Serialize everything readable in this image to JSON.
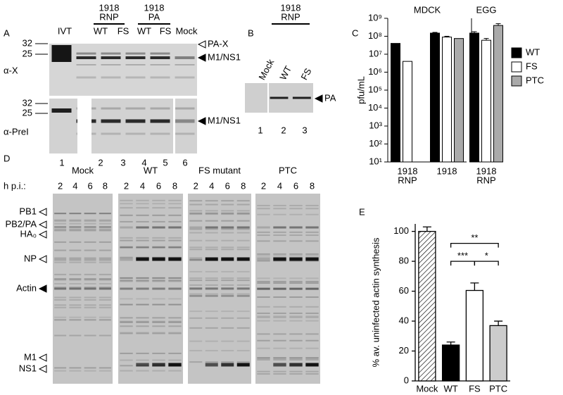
{
  "panel_a": {
    "letter": "A",
    "ivt_label": "IVT",
    "groups": [
      {
        "title_lines": [
          "1918",
          "RNP"
        ],
        "lanes": [
          "WT",
          "FS"
        ]
      },
      {
        "title_lines": [
          "1918",
          "PA"
        ],
        "lanes": [
          "WT",
          "FS"
        ]
      }
    ],
    "mock_label": "Mock",
    "blots": [
      {
        "antibody": "α-X",
        "markers": [
          "32",
          "25"
        ],
        "band_labels": [
          {
            "text": "PA-X",
            "marker": "open"
          },
          {
            "text": "M1/NS1",
            "marker": "filled"
          }
        ]
      },
      {
        "antibody": "α-PreI",
        "markers": [
          "32",
          "25"
        ],
        "band_labels": [
          {
            "text": "M1/NS1",
            "marker": "filled"
          }
        ]
      }
    ],
    "lane_numbers": [
      "1",
      "2",
      "3",
      "4",
      "5",
      "6"
    ]
  },
  "panel_b": {
    "letter": "B",
    "title_lines": [
      "1918",
      "RNP"
    ],
    "lanes": [
      "Mock",
      "WT",
      "FS"
    ],
    "band_label": "PA",
    "lane_numbers": [
      "1",
      "2",
      "3"
    ]
  },
  "panel_d": {
    "letter": "D",
    "time_label": "h p.i.:",
    "groups": [
      {
        "name": "Mock",
        "times": [
          "2",
          "4",
          "6",
          "8"
        ]
      },
      {
        "name": "WT",
        "times": [
          "2",
          "4",
          "6",
          "8"
        ]
      },
      {
        "name": "FS mutant",
        "times": [
          "2",
          "4",
          "6",
          "8"
        ]
      },
      {
        "name": "PTC",
        "times": [
          "2",
          "4",
          "6",
          "8"
        ]
      }
    ],
    "band_labels": [
      {
        "text": "PB1",
        "marker": "open"
      },
      {
        "text": "PB2/PA",
        "marker": "open"
      },
      {
        "text": "HA₀",
        "marker": "open"
      },
      {
        "text": "NP",
        "marker": "open"
      },
      {
        "text": "Actin",
        "marker": "filled"
      },
      {
        "text": "M1",
        "marker": "open"
      },
      {
        "text": "NS1",
        "marker": "open"
      }
    ]
  },
  "chart_data": [
    {
      "type": "bar",
      "panel_label": "C",
      "y_label": "pfu/mL",
      "log_scale": true,
      "facets": [
        {
          "title": "MDCK",
          "categories": [
            [
              "1918",
              "RNP"
            ],
            [
              "1918"
            ]
          ]
        },
        {
          "title": "EGG",
          "categories": [
            [
              "1918",
              "RNP"
            ]
          ]
        }
      ],
      "series": [
        {
          "name": "WT",
          "color": "#000000",
          "values": [
            40000000,
            150000000,
            150000000
          ],
          "errors": [
            null,
            15000000,
            30000000
          ]
        },
        {
          "name": "FS",
          "color": "#ffffff",
          "values": [
            4000000,
            90000000,
            60000000
          ],
          "errors": [
            null,
            10000000,
            15000000
          ]
        },
        {
          "name": "PTC",
          "color": "#aaaaaa",
          "values": [
            null,
            75000000,
            400000000
          ],
          "errors": [
            null,
            null,
            100000000
          ]
        }
      ],
      "ylim": [
        10,
        1000000000
      ],
      "yticks": [
        {
          "value": 10,
          "label": "10¹"
        },
        {
          "value": 100,
          "label": "10²"
        },
        {
          "value": 1000,
          "label": "10³"
        },
        {
          "value": 10000,
          "label": "10⁴"
        },
        {
          "value": 100000,
          "label": "10⁵"
        },
        {
          "value": 1000000,
          "label": "10⁶"
        },
        {
          "value": 10000000,
          "label": "10⁷"
        },
        {
          "value": 100000000,
          "label": "10⁸"
        },
        {
          "value": 1000000000,
          "label": "10⁹"
        }
      ],
      "legend": "right"
    },
    {
      "type": "bar",
      "panel_label": "E",
      "y_label": "% av. uninfected actin synthesis",
      "categories": [
        "Mock",
        "WT",
        "FS",
        "PTC"
      ],
      "values": [
        100,
        24,
        60.5,
        37
      ],
      "errors": [
        3,
        2,
        5,
        3
      ],
      "colors": [
        "#ffffff",
        "#000000",
        "#ffffff",
        "#cccccc"
      ],
      "hatched_categories": [
        "Mock"
      ],
      "ylim": [
        0,
        105
      ],
      "yticks": [
        0,
        20,
        40,
        60,
        80,
        100
      ],
      "significance": [
        {
          "text": "**",
          "from": "WT",
          "to": "PTC",
          "y": 92
        },
        {
          "text": "***",
          "from": "WT",
          "to": "FS",
          "y": 80
        },
        {
          "text": "*",
          "from": "FS",
          "to": "PTC",
          "y": 80
        }
      ]
    }
  ]
}
